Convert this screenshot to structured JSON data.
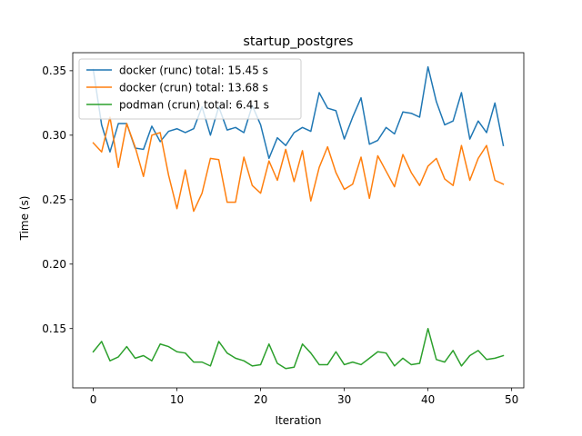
{
  "chart_data": {
    "type": "line",
    "title": "startup_postgres",
    "xlabel": "Iteration",
    "ylabel": "Time (s)",
    "xlim": [
      -2.45,
      51.45
    ],
    "ylim": [
      0.104,
      0.364
    ],
    "xticks": [
      0,
      10,
      20,
      30,
      40,
      50
    ],
    "yticks": [
      0.15,
      0.2,
      0.25,
      0.3,
      0.35
    ],
    "ytick_labels": [
      "0.15",
      "0.20",
      "0.25",
      "0.30",
      "0.35"
    ],
    "legend_position": "upper-left",
    "grid": false,
    "x": [
      0,
      1,
      2,
      3,
      4,
      5,
      6,
      7,
      8,
      9,
      10,
      11,
      12,
      13,
      14,
      15,
      16,
      17,
      18,
      19,
      20,
      21,
      22,
      23,
      24,
      25,
      26,
      27,
      28,
      29,
      30,
      31,
      32,
      33,
      34,
      35,
      36,
      37,
      38,
      39,
      40,
      41,
      42,
      43,
      44,
      45,
      46,
      47,
      48,
      49
    ],
    "series": [
      {
        "name": "docker (runc) total: 15.45 s",
        "color": "#1f77b4",
        "values": [
          0.351,
          0.308,
          0.287,
          0.309,
          0.309,
          0.29,
          0.289,
          0.307,
          0.295,
          0.303,
          0.305,
          0.302,
          0.305,
          0.322,
          0.3,
          0.322,
          0.304,
          0.306,
          0.302,
          0.323,
          0.308,
          0.282,
          0.298,
          0.292,
          0.302,
          0.306,
          0.303,
          0.333,
          0.321,
          0.319,
          0.297,
          0.314,
          0.329,
          0.293,
          0.296,
          0.306,
          0.301,
          0.318,
          0.317,
          0.314,
          0.353,
          0.326,
          0.308,
          0.311,
          0.333,
          0.297,
          0.311,
          0.302,
          0.325,
          0.292
        ]
      },
      {
        "name": "docker (crun) total: 13.68 s",
        "color": "#ff7f0e",
        "values": [
          0.294,
          0.287,
          0.314,
          0.275,
          0.309,
          0.291,
          0.268,
          0.3,
          0.302,
          0.269,
          0.243,
          0.273,
          0.241,
          0.255,
          0.282,
          0.281,
          0.248,
          0.248,
          0.283,
          0.261,
          0.255,
          0.28,
          0.265,
          0.289,
          0.264,
          0.288,
          0.249,
          0.275,
          0.291,
          0.271,
          0.258,
          0.262,
          0.283,
          0.251,
          0.284,
          0.272,
          0.26,
          0.285,
          0.271,
          0.261,
          0.276,
          0.282,
          0.266,
          0.261,
          0.292,
          0.265,
          0.282,
          0.292,
          0.265,
          0.262
        ]
      },
      {
        "name": "podman (crun) total: 6.41 s",
        "color": "#2ca02c",
        "values": [
          0.132,
          0.14,
          0.125,
          0.128,
          0.136,
          0.127,
          0.129,
          0.125,
          0.138,
          0.136,
          0.132,
          0.131,
          0.124,
          0.124,
          0.121,
          0.14,
          0.131,
          0.127,
          0.125,
          0.121,
          0.122,
          0.138,
          0.123,
          0.119,
          0.12,
          0.138,
          0.131,
          0.122,
          0.122,
          0.132,
          0.122,
          0.124,
          0.122,
          0.127,
          0.132,
          0.131,
          0.121,
          0.127,
          0.122,
          0.123,
          0.15,
          0.126,
          0.124,
          0.133,
          0.121,
          0.129,
          0.133,
          0.126,
          0.127,
          0.129
        ]
      }
    ]
  }
}
